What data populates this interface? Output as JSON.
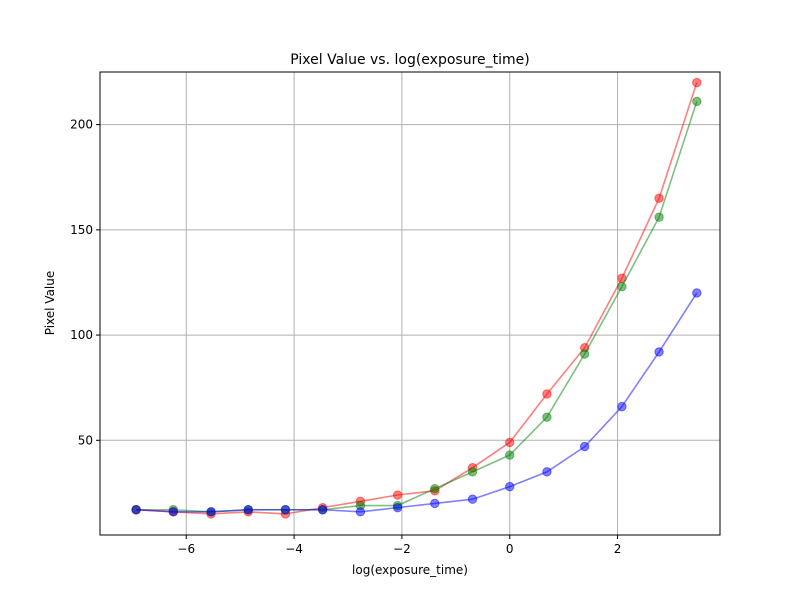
{
  "chart_data": {
    "type": "line",
    "title": "Pixel Value vs. log(exposure_time)",
    "xlabel": "log(exposure_time)",
    "ylabel": "Pixel Value",
    "xlim": [
      -7.6,
      3.9
    ],
    "ylim": [
      5,
      225
    ],
    "x_ticks": [
      -6,
      -4,
      -2,
      0,
      2
    ],
    "x_tick_labels": [
      "−6",
      "−4",
      "−2",
      "0",
      "2"
    ],
    "y_ticks": [
      50,
      100,
      150,
      200
    ],
    "y_tick_labels": [
      "50",
      "100",
      "150",
      "200"
    ],
    "grid": true,
    "x": [
      -6.93,
      -6.24,
      -5.54,
      -4.85,
      -4.16,
      -3.47,
      -2.77,
      -2.08,
      -1.39,
      -0.69,
      0.0,
      0.69,
      1.39,
      2.08,
      2.77,
      3.47
    ],
    "series": [
      {
        "color": "#ff0000",
        "values": [
          17,
          16,
          15,
          16,
          15,
          18,
          21,
          24,
          26,
          37,
          49,
          72,
          94,
          127,
          165,
          220
        ]
      },
      {
        "color": "#008000",
        "values": [
          17,
          17,
          16,
          17,
          17,
          17,
          19,
          19,
          27,
          35,
          43,
          61,
          91,
          123,
          156,
          211
        ]
      },
      {
        "color": "#0000ff",
        "values": [
          17,
          16,
          16,
          17,
          17,
          17,
          16,
          18,
          20,
          22,
          28,
          35,
          47,
          66,
          92,
          120
        ]
      }
    ]
  }
}
